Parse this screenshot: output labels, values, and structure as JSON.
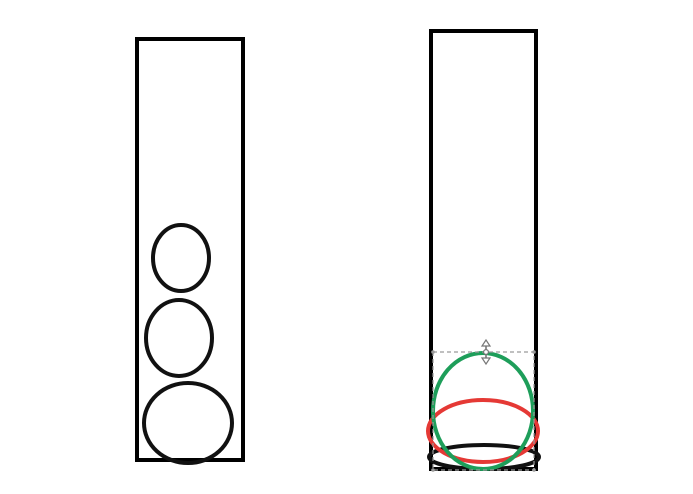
{
  "colors": {
    "background": "#ffffff",
    "outline": "#000000",
    "ellipse_black": "#111111",
    "ellipse_red": "#e53935",
    "ellipse_green": "#1e9e5a",
    "selection_box": "#9a9a9a",
    "selection_handle": "#777777"
  },
  "icons": {
    "move_handle": "vertical-resize-arrows-icon"
  }
}
